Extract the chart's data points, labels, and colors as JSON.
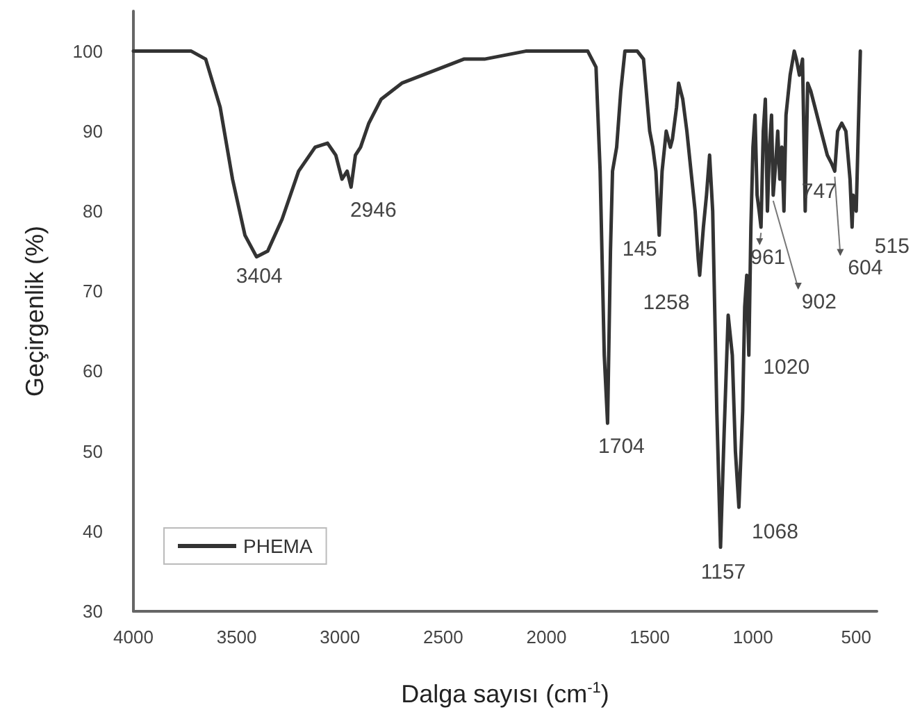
{
  "chart_data": {
    "type": "line",
    "xlabel": "Dalga sayısı (cm$^{-1}$)",
    "ylabel": "Geçirgenlik (%)",
    "xlim": [
      4000,
      400
    ],
    "xticks": [
      4000,
      3500,
      3000,
      2500,
      2000,
      1500,
      1000,
      500
    ],
    "ylim": [
      30,
      105
    ],
    "yticks": [
      30,
      40,
      50,
      60,
      70,
      80,
      90,
      100
    ],
    "grid": false,
    "legend": "bottom left",
    "marker": "none",
    "line_style": "solid",
    "series": [
      {
        "name": "PHEMA",
        "color": "#333333",
        "x": [
          4000,
          3800,
          3720,
          3650,
          3580,
          3520,
          3460,
          3404,
          3350,
          3280,
          3200,
          3120,
          3060,
          3020,
          2990,
          2965,
          2946,
          2925,
          2900,
          2860,
          2800,
          2700,
          2600,
          2500,
          2400,
          2300,
          2200,
          2100,
          2000,
          1900,
          1800,
          1760,
          1740,
          1720,
          1704,
          1690,
          1680,
          1660,
          1640,
          1620,
          1600,
          1560,
          1530,
          1500,
          1485,
          1470,
          1454,
          1440,
          1420,
          1400,
          1390,
          1370,
          1360,
          1340,
          1320,
          1300,
          1280,
          1265,
          1258,
          1240,
          1225,
          1210,
          1195,
          1175,
          1157,
          1140,
          1120,
          1100,
          1085,
          1068,
          1050,
          1040,
          1030,
          1020,
          1010,
          1000,
          990,
          980,
          970,
          961,
          950,
          940,
          930,
          920,
          910,
          902,
          890,
          880,
          870,
          860,
          850,
          840,
          820,
          800,
          790,
          775,
          760,
          747,
          735,
          720,
          700,
          680,
          660,
          640,
          620,
          604,
          590,
          570,
          550,
          530,
          520,
          515,
          500,
          480
        ],
        "values": [
          100,
          100,
          100,
          99,
          93,
          84,
          77,
          74.3,
          75,
          79,
          85,
          88,
          88.5,
          87,
          84,
          85,
          83,
          87,
          88,
          91,
          94,
          96,
          97,
          98,
          99,
          99,
          99.5,
          100,
          100,
          100,
          100,
          98,
          85,
          62,
          53.5,
          75,
          85,
          88,
          95,
          100,
          100,
          100,
          99,
          90,
          88,
          85,
          77,
          85,
          90,
          88,
          89,
          93,
          96,
          94,
          90,
          85,
          80,
          74,
          72,
          78,
          82,
          87,
          80,
          55,
          38,
          52,
          67,
          62,
          50,
          43,
          55,
          68,
          72,
          62,
          78,
          88,
          92,
          82,
          80,
          78,
          90,
          94,
          80,
          88,
          92,
          82,
          86,
          90,
          84,
          88,
          80,
          92,
          97,
          100,
          99,
          97,
          99,
          80,
          96,
          95,
          93,
          91,
          89,
          87,
          86,
          85,
          90,
          91,
          90,
          84,
          78,
          82,
          80,
          100
        ]
      }
    ],
    "annotations": [
      {
        "text": "3404",
        "x": 3404,
        "y": 74.3
      },
      {
        "text": "2946",
        "x": 2946,
        "y": 83
      },
      {
        "text": "1704",
        "x": 1704,
        "y": 53.5
      },
      {
        "text": "145",
        "x": 1454,
        "y": 77
      },
      {
        "text": "1258",
        "x": 1258,
        "y": 72
      },
      {
        "text": "1157",
        "x": 1157,
        "y": 38
      },
      {
        "text": "1068",
        "x": 1068,
        "y": 43
      },
      {
        "text": "1020",
        "x": 1020,
        "y": 62
      },
      {
        "text": "961",
        "x": 961,
        "y": 78
      },
      {
        "text": "902",
        "x": 902,
        "y": 82
      },
      {
        "text": "747",
        "x": 747,
        "y": 80
      },
      {
        "text": "604",
        "x": 604,
        "y": 85
      },
      {
        "text": "515",
        "x": 515,
        "y": 78
      }
    ]
  }
}
